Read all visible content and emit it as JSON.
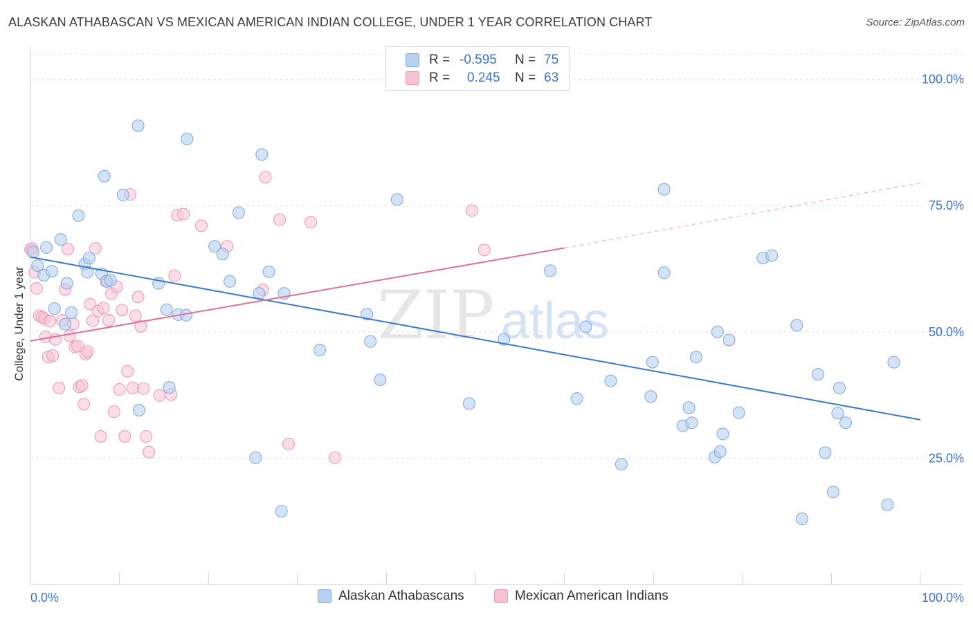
{
  "title": "ALASKAN ATHABASCAN VS MEXICAN AMERICAN INDIAN COLLEGE, UNDER 1 YEAR CORRELATION CHART",
  "source": "Source: ZipAtlas.com",
  "watermark": {
    "zip": "ZIP",
    "atlas": "atlas"
  },
  "legend": {
    "r_label": "R =",
    "n_label": "N =",
    "rows": [
      {
        "r": "-0.595",
        "n": "75"
      },
      {
        "r": "0.245",
        "n": "63"
      }
    ]
  },
  "colors": {
    "blue_fill": "#b9d1f0",
    "blue_stroke": "#7aa7dc",
    "blue_line": "#3a78d0",
    "pink_fill": "#f7c3d3",
    "pink_stroke": "#e896b2",
    "pink_line": "#e06e96",
    "tick_text": "#3b74c9",
    "grid": "#dddddd"
  },
  "chart_data": {
    "type": "scatter",
    "title": "ALASKAN ATHABASCAN VS MEXICAN AMERICAN INDIAN COLLEGE, UNDER 1 YEAR CORRELATION CHART",
    "xlabel": "",
    "ylabel": "College, Under 1 year",
    "xlim": [
      0,
      100
    ],
    "ylim": [
      0,
      105
    ],
    "x_tick_labels": [
      "0.0%",
      "100.0%"
    ],
    "y_ticks": [
      25,
      50,
      75,
      100
    ],
    "y_tick_labels": [
      "25.0%",
      "50.0%",
      "75.0%",
      "100.0%"
    ],
    "grid": true,
    "legend_position": "top-center",
    "series": [
      {
        "name": "Alaskan Athabascans",
        "color": "#b9d1f0",
        "r": -0.595,
        "n": 75,
        "trend": {
          "x0": 0,
          "y0": 64.8,
          "x1": 100,
          "y1": 32.6
        },
        "points": [
          [
            0.3,
            65.8
          ],
          [
            0.8,
            63.1
          ],
          [
            1.5,
            61.2
          ],
          [
            1.8,
            66.7
          ],
          [
            2.4,
            62.0
          ],
          [
            2.7,
            54.6
          ],
          [
            3.4,
            68.3
          ],
          [
            4.1,
            59.6
          ],
          [
            4.6,
            53.8
          ],
          [
            3.9,
            51.5
          ],
          [
            5.4,
            73.0
          ],
          [
            6.1,
            63.4
          ],
          [
            6.4,
            61.8
          ],
          [
            6.6,
            64.6
          ],
          [
            8.0,
            61.5
          ],
          [
            8.6,
            60.0
          ],
          [
            9.0,
            60.2
          ],
          [
            8.3,
            80.8
          ],
          [
            10.4,
            77.1
          ],
          [
            12.1,
            90.8
          ],
          [
            12.2,
            34.5
          ],
          [
            14.4,
            59.6
          ],
          [
            15.3,
            54.4
          ],
          [
            15.6,
            39.0
          ],
          [
            16.6,
            53.4
          ],
          [
            17.5,
            53.3
          ],
          [
            17.6,
            88.2
          ],
          [
            20.7,
            66.9
          ],
          [
            21.6,
            65.4
          ],
          [
            22.4,
            60.0
          ],
          [
            23.4,
            73.6
          ],
          [
            25.3,
            25.1
          ],
          [
            25.7,
            57.6
          ],
          [
            26.0,
            85.1
          ],
          [
            26.8,
            61.9
          ],
          [
            28.2,
            14.5
          ],
          [
            28.5,
            57.6
          ],
          [
            32.5,
            46.4
          ],
          [
            37.8,
            53.5
          ],
          [
            38.2,
            48.1
          ],
          [
            39.3,
            40.5
          ],
          [
            41.2,
            76.2
          ],
          [
            49.3,
            35.8
          ],
          [
            53.2,
            48.5
          ],
          [
            58.4,
            62.1
          ],
          [
            61.4,
            36.8
          ],
          [
            62.4,
            51.0
          ],
          [
            65.2,
            40.3
          ],
          [
            66.4,
            23.8
          ],
          [
            69.7,
            37.2
          ],
          [
            69.9,
            44.0
          ],
          [
            71.2,
            78.2
          ],
          [
            71.2,
            61.7
          ],
          [
            73.3,
            31.4
          ],
          [
            74.0,
            35.0
          ],
          [
            74.3,
            32.0
          ],
          [
            74.8,
            45.0
          ],
          [
            76.9,
            25.2
          ],
          [
            77.2,
            50.0
          ],
          [
            77.5,
            26.3
          ],
          [
            77.8,
            29.8
          ],
          [
            78.5,
            48.4
          ],
          [
            79.6,
            34.0
          ],
          [
            82.3,
            64.6
          ],
          [
            83.3,
            65.1
          ],
          [
            86.1,
            51.3
          ],
          [
            86.7,
            13.0
          ],
          [
            88.5,
            41.6
          ],
          [
            89.3,
            26.1
          ],
          [
            90.2,
            18.3
          ],
          [
            90.7,
            33.9
          ],
          [
            90.9,
            38.9
          ],
          [
            91.6,
            32.0
          ],
          [
            96.3,
            15.8
          ],
          [
            97.0,
            44.0
          ]
        ]
      },
      {
        "name": "Mexican American Indians",
        "color": "#f7c3d3",
        "r": 0.245,
        "n": 63,
        "trend": {
          "x0": 0,
          "y0": 48.2,
          "x1": 60,
          "y1": 66.6,
          "dash_to_x": 100,
          "dash_to_y": 79.5
        },
        "points": [
          [
            0.0,
            66.3
          ],
          [
            0.5,
            61.8
          ],
          [
            0.7,
            58.6
          ],
          [
            1.0,
            53.2
          ],
          [
            1.3,
            52.9
          ],
          [
            1.6,
            52.6
          ],
          [
            1.7,
            49.0
          ],
          [
            2.0,
            45.0
          ],
          [
            2.2,
            52.1
          ],
          [
            2.5,
            45.3
          ],
          [
            2.8,
            48.5
          ],
          [
            3.2,
            38.9
          ],
          [
            3.6,
            52.3
          ],
          [
            3.9,
            58.4
          ],
          [
            4.2,
            66.4
          ],
          [
            4.4,
            49.2
          ],
          [
            4.8,
            51.6
          ],
          [
            5.0,
            47.0
          ],
          [
            5.3,
            47.2
          ],
          [
            5.5,
            39.1
          ],
          [
            5.8,
            39.4
          ],
          [
            6.0,
            35.7
          ],
          [
            6.2,
            45.6
          ],
          [
            6.4,
            46.1
          ],
          [
            6.7,
            55.5
          ],
          [
            7.0,
            52.2
          ],
          [
            7.3,
            66.5
          ],
          [
            7.6,
            54.1
          ],
          [
            7.9,
            29.3
          ],
          [
            8.2,
            54.7
          ],
          [
            8.5,
            60.0
          ],
          [
            8.8,
            52.3
          ],
          [
            9.1,
            57.6
          ],
          [
            9.4,
            34.2
          ],
          [
            9.7,
            58.9
          ],
          [
            10.0,
            38.6
          ],
          [
            10.3,
            54.3
          ],
          [
            10.6,
            29.3
          ],
          [
            10.9,
            42.2
          ],
          [
            11.2,
            77.2
          ],
          [
            11.5,
            38.9
          ],
          [
            11.8,
            53.2
          ],
          [
            12.1,
            56.9
          ],
          [
            12.4,
            51.1
          ],
          [
            12.7,
            38.8
          ],
          [
            13.0,
            29.3
          ],
          [
            13.3,
            26.2
          ],
          [
            14.5,
            37.4
          ],
          [
            15.8,
            37.6
          ],
          [
            16.2,
            61.1
          ],
          [
            16.5,
            73.1
          ],
          [
            17.2,
            73.3
          ],
          [
            19.2,
            71.0
          ],
          [
            22.1,
            66.9
          ],
          [
            26.1,
            58.3
          ],
          [
            26.4,
            80.6
          ],
          [
            28.0,
            72.2
          ],
          [
            29.0,
            27.8
          ],
          [
            31.5,
            71.7
          ],
          [
            34.2,
            25.1
          ],
          [
            49.6,
            74.0
          ],
          [
            51.0,
            66.2
          ],
          [
            0.2,
            66.5
          ]
        ]
      }
    ]
  },
  "bottom_legend": [
    "Alaskan Athabascans",
    "Mexican American Indians"
  ]
}
